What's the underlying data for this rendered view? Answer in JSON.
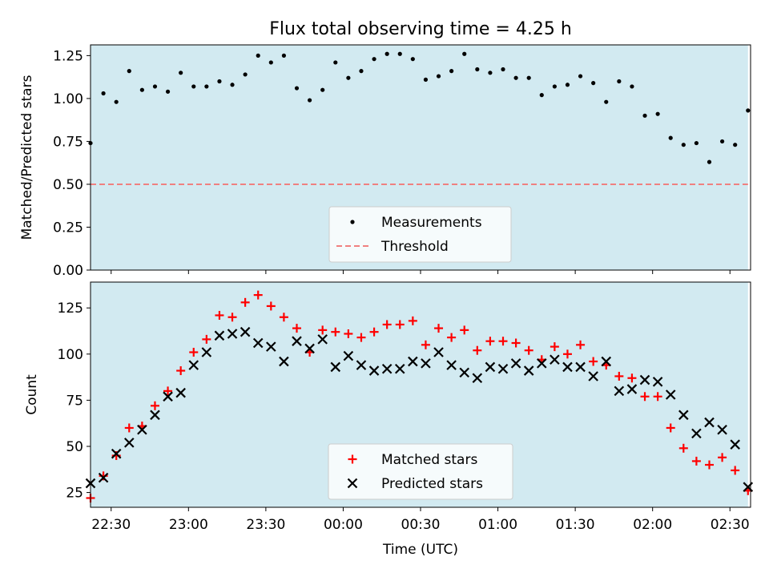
{
  "title": "Flux total observing time = 4.25 h",
  "colors": {
    "observing_band": "#add8e6",
    "measurements": "#000000",
    "threshold": "#f08080",
    "matched": "#ff0000",
    "predicted": "#000000"
  },
  "chart_data": [
    {
      "type": "scatter",
      "title": "Flux total observing time = 4.25 h",
      "ylabel": "Matched/Predicted stars",
      "ylim": [
        0.0,
        1.3125
      ],
      "yticks": [
        "0.00",
        "0.25",
        "0.50",
        "0.75",
        "1.00",
        "1.25"
      ],
      "x_range": [
        "22:22",
        "02:38"
      ],
      "observing_band": [
        "22:22",
        "02:37"
      ],
      "threshold": 0.5,
      "legend_position": "lower center",
      "legend": [
        "Measurements",
        "Threshold"
      ],
      "series": [
        {
          "name": "Measurements",
          "marker": "dot",
          "x": [
            "22:22",
            "22:27",
            "22:32",
            "22:37",
            "22:42",
            "22:47",
            "22:52",
            "22:57",
            "23:02",
            "23:07",
            "23:12",
            "23:17",
            "23:22",
            "23:27",
            "23:32",
            "23:37",
            "23:42",
            "23:47",
            "23:52",
            "23:57",
            "00:02",
            "00:07",
            "00:12",
            "00:17",
            "00:22",
            "00:27",
            "00:32",
            "00:37",
            "00:42",
            "00:47",
            "00:52",
            "00:57",
            "01:02",
            "01:07",
            "01:12",
            "01:17",
            "01:22",
            "01:27",
            "01:32",
            "01:37",
            "01:42",
            "01:47",
            "01:52",
            "01:57",
            "02:02",
            "02:07",
            "02:12",
            "02:17",
            "02:22",
            "02:27",
            "02:32",
            "02:37"
          ],
          "values": [
            0.74,
            1.03,
            0.98,
            1.16,
            1.05,
            1.07,
            1.04,
            1.15,
            1.07,
            1.07,
            1.1,
            1.08,
            1.14,
            1.25,
            1.21,
            1.25,
            1.06,
            0.99,
            1.05,
            1.21,
            1.12,
            1.16,
            1.23,
            1.26,
            1.26,
            1.23,
            1.11,
            1.13,
            1.16,
            1.26,
            1.17,
            1.15,
            1.17,
            1.12,
            1.12,
            1.02,
            1.07,
            1.08,
            1.13,
            1.09,
            0.98,
            1.1,
            1.07,
            0.9,
            0.91,
            0.77,
            0.73,
            0.74,
            0.63,
            0.75,
            0.73,
            0.93
          ]
        }
      ]
    },
    {
      "type": "scatter",
      "xlabel": "Time (UTC)",
      "ylabel": "Count",
      "ylim": [
        17,
        139
      ],
      "yticks": [
        "25",
        "50",
        "75",
        "100",
        "125"
      ],
      "xticks": [
        "22:30",
        "23:00",
        "23:30",
        "00:00",
        "00:30",
        "01:00",
        "01:30",
        "02:00",
        "02:30"
      ],
      "x_range": [
        "22:22",
        "02:38"
      ],
      "observing_band": [
        "22:22",
        "02:37"
      ],
      "legend_position": "lower center",
      "legend": [
        "Matched stars",
        "Predicted stars"
      ],
      "x": [
        "22:22",
        "22:27",
        "22:32",
        "22:37",
        "22:42",
        "22:47",
        "22:52",
        "22:57",
        "23:02",
        "23:07",
        "23:12",
        "23:17",
        "23:22",
        "23:27",
        "23:32",
        "23:37",
        "23:42",
        "23:47",
        "23:52",
        "23:57",
        "00:02",
        "00:07",
        "00:12",
        "00:17",
        "00:22",
        "00:27",
        "00:32",
        "00:37",
        "00:42",
        "00:47",
        "00:52",
        "00:57",
        "01:02",
        "01:07",
        "01:12",
        "01:17",
        "01:22",
        "01:27",
        "01:32",
        "01:37",
        "01:42",
        "01:47",
        "01:52",
        "01:57",
        "02:02",
        "02:07",
        "02:12",
        "02:17",
        "02:22",
        "02:27",
        "02:32",
        "02:37"
      ],
      "series": [
        {
          "name": "Matched stars",
          "marker": "plus",
          "values": [
            22,
            34,
            45,
            60,
            61,
            72,
            80,
            91,
            101,
            108,
            121,
            120,
            128,
            132,
            126,
            120,
            114,
            101,
            113,
            112,
            111,
            109,
            112,
            116,
            116,
            118,
            105,
            114,
            109,
            113,
            102,
            107,
            107,
            106,
            102,
            97,
            104,
            100,
            105,
            96,
            94,
            88,
            87,
            77,
            77,
            60,
            49,
            42,
            40,
            44,
            37,
            26
          ]
        },
        {
          "name": "Predicted stars",
          "marker": "x",
          "values": [
            30,
            33,
            46,
            52,
            59,
            67,
            77,
            79,
            94,
            101,
            110,
            111,
            112,
            106,
            104,
            96,
            107,
            103,
            108,
            93,
            99,
            94,
            91,
            92,
            92,
            96,
            95,
            101,
            94,
            90,
            87,
            93,
            92,
            95,
            91,
            95,
            97,
            93,
            93,
            88,
            96,
            80,
            81,
            86,
            85,
            78,
            67,
            57,
            63,
            59,
            51,
            28
          ]
        }
      ]
    }
  ]
}
